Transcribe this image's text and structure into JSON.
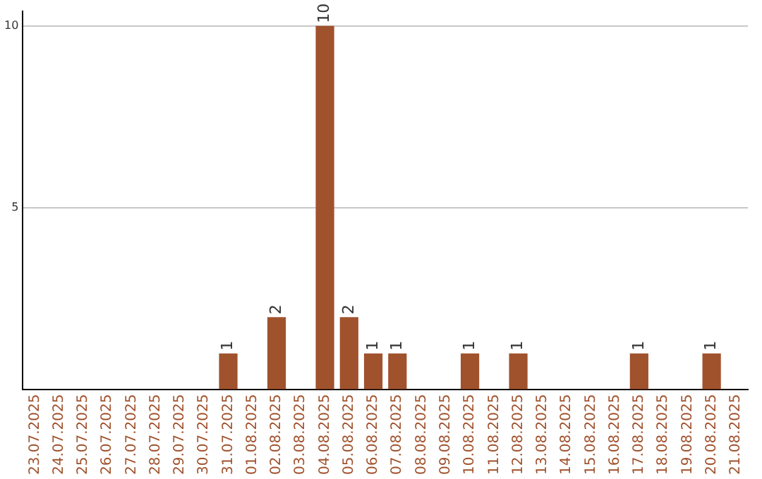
{
  "chart_data": {
    "type": "bar",
    "categories": [
      "23.07.2025",
      "24.07.2025",
      "25.07.2025",
      "26.07.2025",
      "27.07.2025",
      "28.07.2025",
      "29.07.2025",
      "30.07.2025",
      "31.07.2025",
      "01.08.2025",
      "02.08.2025",
      "03.08.2025",
      "04.08.2025",
      "05.08.2025",
      "06.08.2025",
      "07.08.2025",
      "08.08.2025",
      "09.08.2025",
      "10.08.2025",
      "11.08.2025",
      "12.08.2025",
      "13.08.2025",
      "14.08.2025",
      "15.08.2025",
      "16.08.2025",
      "17.08.2025",
      "18.08.2025",
      "19.08.2025",
      "20.08.2025",
      "21.08.2025"
    ],
    "values": [
      0,
      0,
      0,
      0,
      0,
      0,
      0,
      0,
      1,
      0,
      2,
      0,
      10,
      2,
      1,
      1,
      0,
      0,
      1,
      0,
      1,
      0,
      0,
      0,
      0,
      1,
      0,
      0,
      1,
      0
    ],
    "value_labels": [
      null,
      null,
      null,
      null,
      null,
      null,
      null,
      null,
      "1",
      null,
      "2",
      null,
      "10",
      "2",
      "1",
      "1",
      null,
      null,
      "1",
      null,
      "1",
      null,
      null,
      null,
      null,
      "1",
      null,
      null,
      "1",
      null
    ],
    "color": "#a0522d",
    "ylim": [
      0,
      10.4
    ],
    "yticks": [
      {
        "value": 0,
        "label": null
      },
      5,
      10
    ],
    "grid": "y",
    "legend": false
  }
}
